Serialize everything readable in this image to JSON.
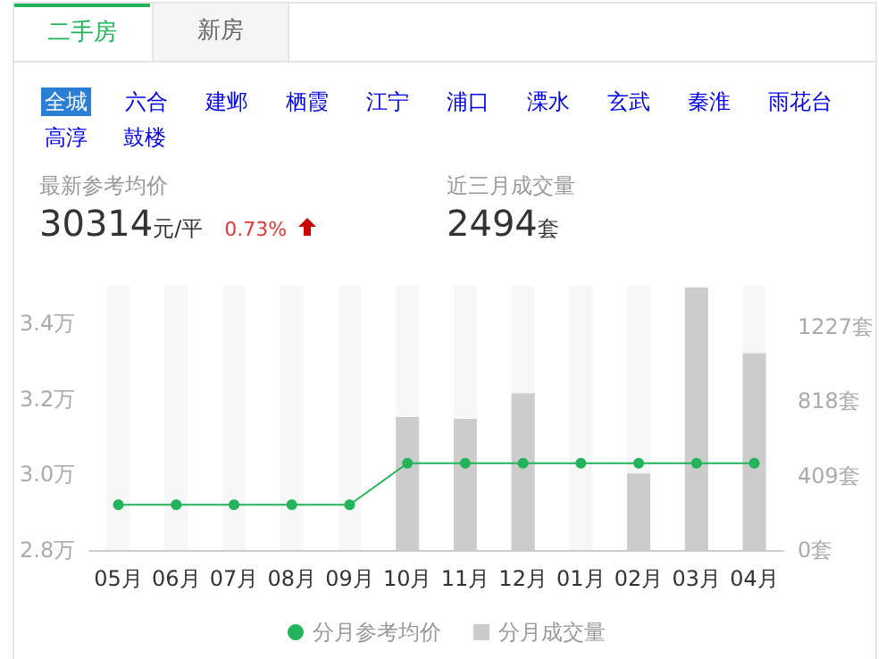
{
  "chart_data": {
    "type": "bar",
    "annotations": [
      "二手房",
      "新房",
      "全城",
      "六合",
      "建邺",
      "栖霞",
      "江宁",
      "浦口",
      "溧水",
      "玄武",
      "秦淮",
      "雨花台",
      "高淳",
      "鼓楼",
      "最新参考均价",
      "30314",
      "元/平",
      "0.73%",
      "近三月成交量",
      "2494",
      "套"
    ],
    "categories": [
      "05月",
      "06月",
      "07月",
      "08月",
      "09月",
      "10月",
      "11月",
      "12月",
      "01月",
      "02月",
      "03月",
      "04月"
    ],
    "series": [
      {
        "name": "分月成交量",
        "axis": "y2",
        "color": "#cccccc",
        "values": [
          0,
          0,
          0,
          0,
          0,
          730,
          720,
          860,
          0,
          420,
          1440,
          1080
        ]
      },
      {
        "name": "分月参考均价",
        "type": "line",
        "color": "#22b35b",
        "values": [
          2.92,
          2.92,
          2.92,
          2.92,
          2.92,
          3.03,
          3.03,
          3.03,
          3.03,
          3.03,
          3.03,
          3.03
        ]
      }
    ],
    "ylim": [
      2.8,
      3.5
    ],
    "yticks": [
      {
        "value": 2.8,
        "label": "2.8万"
      },
      {
        "value": 3.0,
        "label": "3.0万"
      },
      {
        "value": 3.2,
        "label": "3.2万"
      },
      {
        "value": 3.4,
        "label": "3.4万"
      }
    ],
    "y2lim": [
      0,
      1450
    ],
    "y2ticks": [
      {
        "value": 0,
        "label": "0套"
      },
      {
        "value": 409,
        "label": "409套"
      },
      {
        "value": 818,
        "label": "818套"
      },
      {
        "value": 1227,
        "label": "1227套"
      }
    ],
    "bands": [
      {
        "axis": "x",
        "from": "05月",
        "to": "05月",
        "color": "#f7f7f7"
      },
      {
        "axis": "x",
        "from": "06月",
        "to": "06月",
        "color": "#f7f7f7"
      },
      {
        "axis": "x",
        "from": "07月",
        "to": "07月",
        "color": "#f7f7f7"
      },
      {
        "axis": "x",
        "from": "08月",
        "to": "08月",
        "color": "#f7f7f7"
      },
      {
        "axis": "x",
        "from": "09月",
        "to": "09月",
        "color": "#f7f7f7"
      },
      {
        "axis": "x",
        "from": "10月",
        "to": "10月",
        "color": "#f7f7f7"
      },
      {
        "axis": "x",
        "from": "11月",
        "to": "11月",
        "color": "#f7f7f7"
      },
      {
        "axis": "x",
        "from": "12月",
        "to": "12月",
        "color": "#f7f7f7"
      },
      {
        "axis": "x",
        "from": "01月",
        "to": "01月",
        "color": "#f7f7f7"
      },
      {
        "axis": "x",
        "from": "02月",
        "to": "02月",
        "color": "#f7f7f7"
      },
      {
        "axis": "x",
        "from": "03月",
        "to": "03月",
        "color": "#f7f7f7"
      },
      {
        "axis": "x",
        "from": "04月",
        "to": "04月",
        "color": "#f7f7f7"
      }
    ],
    "grid": false,
    "legend": "bottom",
    "marker": "circle",
    "line_style": "solid"
  }
}
